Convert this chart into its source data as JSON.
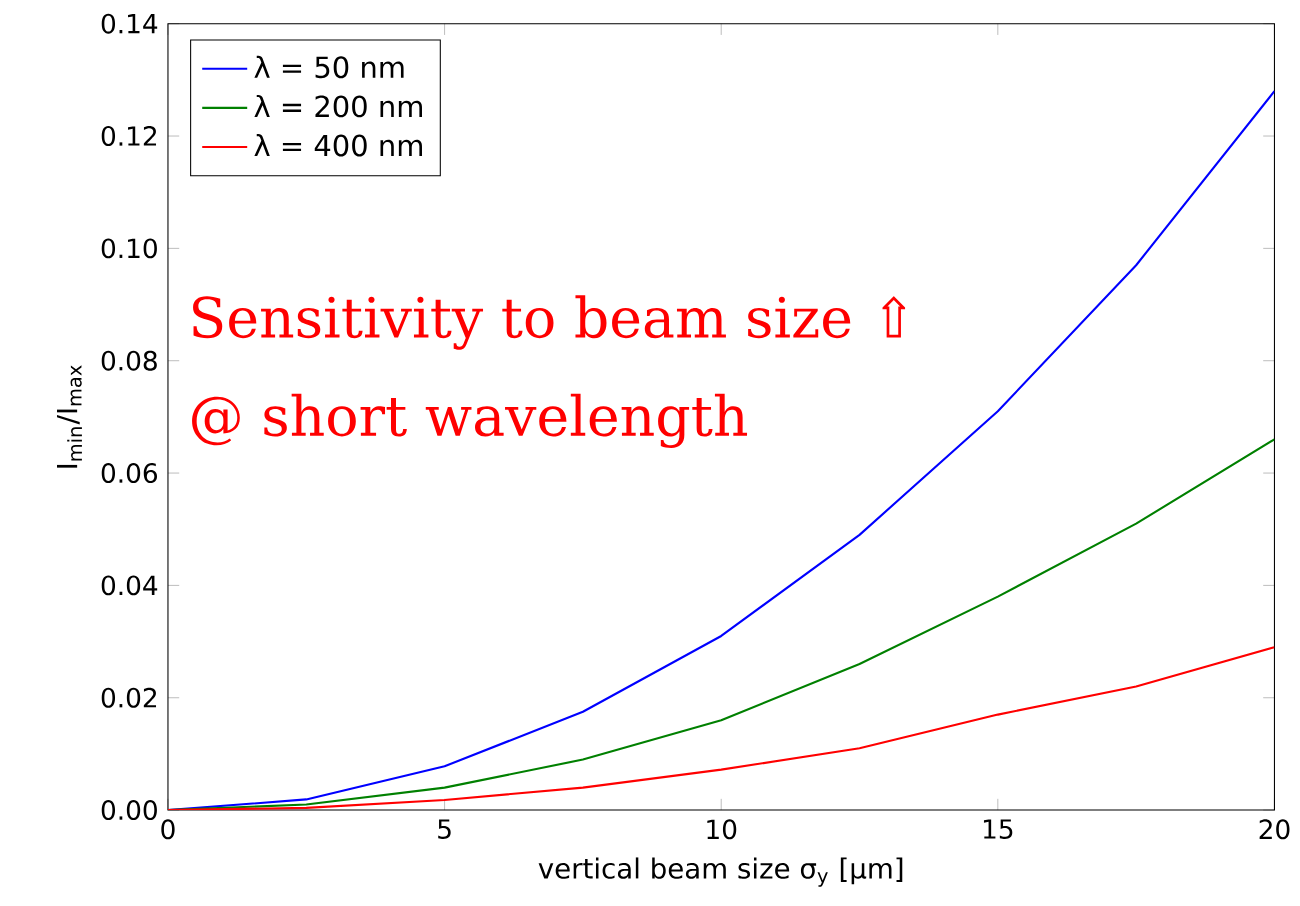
{
  "chart_data": {
    "type": "line",
    "xlabel": "vertical beam size σ$_{y}$ [μm]",
    "ylabel": "I$_{min}$/I$_{max}$",
    "x": [
      0,
      2.5,
      5,
      7.5,
      10,
      12.5,
      15,
      17.5,
      20
    ],
    "series": [
      {
        "name": "λ = 50 nm",
        "color": "#0000ff",
        "values": [
          0,
          0.0019,
          0.0078,
          0.0175,
          0.031,
          0.049,
          0.071,
          0.097,
          0.128
        ]
      },
      {
        "name": "λ = 200 nm",
        "color": "#008000",
        "values": [
          0,
          0.001,
          0.004,
          0.009,
          0.016,
          0.026,
          0.038,
          0.051,
          0.066
        ]
      },
      {
        "name": "λ = 400 nm",
        "color": "#ff0000",
        "values": [
          0,
          0.0004,
          0.0018,
          0.004,
          0.0072,
          0.011,
          0.017,
          0.022,
          0.029
        ]
      }
    ],
    "xlim": [
      0,
      20
    ],
    "xticks": [
      0,
      5,
      10,
      15,
      20
    ],
    "ylim": [
      0,
      0.14
    ],
    "yticks": [
      {
        "value": 0,
        "label": "0.00"
      },
      {
        "value": 0.02,
        "label": "0.02"
      },
      {
        "value": 0.04,
        "label": "0.04"
      },
      {
        "value": 0.06,
        "label": "0.06"
      },
      {
        "value": 0.08,
        "label": "0.08"
      },
      {
        "value": 0.1,
        "label": "0.10"
      },
      {
        "value": 0.12,
        "label": "0.12"
      },
      {
        "value": 0.14,
        "label": "0.14"
      }
    ],
    "annotations": [
      "Sensitivity to beam size ⇧",
      "@ short wavelength"
    ],
    "legend": "top left",
    "grid": false,
    "marker": "none",
    "line_style": "solid"
  }
}
